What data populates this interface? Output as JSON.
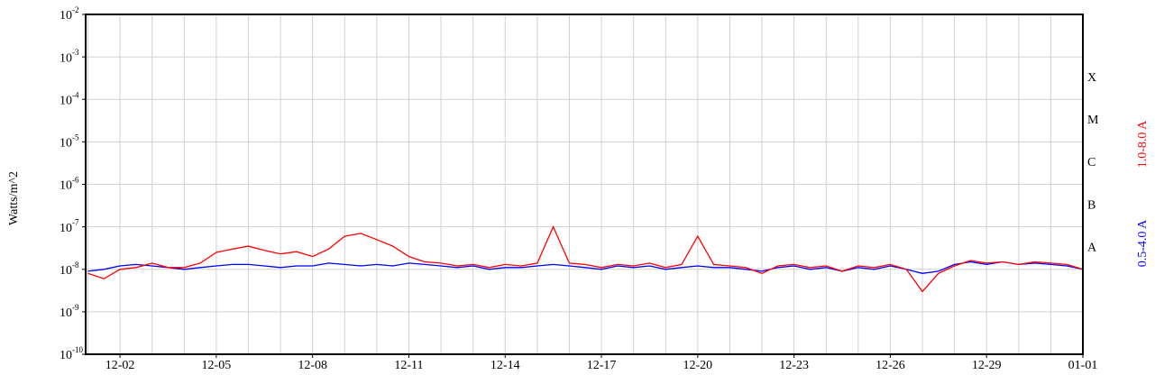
{
  "chart_data": {
    "type": "line",
    "y_label": "Watts/m^2",
    "log_y": true,
    "grid": true,
    "xlim": [
      0.93,
      32
    ],
    "ylim": [
      1e-10,
      0.01
    ],
    "xticks": [
      {
        "value": 2,
        "label": "12-02"
      },
      {
        "value": 5,
        "label": "12-05"
      },
      {
        "value": 8,
        "label": "12-08"
      },
      {
        "value": 11,
        "label": "12-11"
      },
      {
        "value": 14,
        "label": "12-14"
      },
      {
        "value": 17,
        "label": "12-17"
      },
      {
        "value": 20,
        "label": "12-20"
      },
      {
        "value": 23,
        "label": "12-23"
      },
      {
        "value": 26,
        "label": "12-26"
      },
      {
        "value": 29,
        "label": "12-29"
      },
      {
        "value": 32,
        "label": "01-01"
      }
    ],
    "yticks": [
      {
        "value": 1e-10,
        "label": "10",
        "exp": "-10"
      },
      {
        "value": 1e-09,
        "label": "10",
        "exp": "-9"
      },
      {
        "value": 1e-08,
        "label": "10",
        "exp": "-8"
      },
      {
        "value": 1e-07,
        "label": "10",
        "exp": "-7"
      },
      {
        "value": 1e-06,
        "label": "10",
        "exp": "-6"
      },
      {
        "value": 1e-05,
        "label": "10",
        "exp": "-5"
      },
      {
        "value": 0.0001,
        "label": "10",
        "exp": "-4"
      },
      {
        "value": 0.001,
        "label": "10",
        "exp": "-3"
      },
      {
        "value": 0.01,
        "label": "10",
        "exp": "-2"
      }
    ],
    "flare_classes": [
      {
        "label": "A",
        "value": 1e-08
      },
      {
        "label": "B",
        "value": 1e-07
      },
      {
        "label": "C",
        "value": 1e-06
      },
      {
        "label": "M",
        "value": 1e-05
      },
      {
        "label": "X",
        "value": 0.0001
      }
    ],
    "x": [
      1,
      1.5,
      2,
      2.5,
      3,
      3.5,
      4,
      4.5,
      5,
      5.5,
      6,
      6.5,
      7,
      7.5,
      8,
      8.5,
      9,
      9.5,
      10,
      10.5,
      11,
      11.5,
      12,
      12.5,
      13,
      13.5,
      14,
      14.5,
      15,
      15.5,
      16,
      16.5,
      17,
      17.5,
      18,
      18.5,
      19,
      19.5,
      20,
      20.5,
      21,
      21.5,
      22,
      22.5,
      23,
      23.5,
      24,
      24.5,
      25,
      25.5,
      26,
      26.5,
      27,
      27.5,
      28,
      28.5,
      29,
      29.5,
      30,
      30.5,
      31,
      31.5,
      32
    ],
    "series": [
      {
        "name": "0.5-4.0 A",
        "color": "#0000ff",
        "values": [
          9e-09,
          1e-08,
          1.2e-08,
          1.3e-08,
          1.2e-08,
          1.1e-08,
          1e-08,
          1.1e-08,
          1.2e-08,
          1.3e-08,
          1.3e-08,
          1.2e-08,
          1.1e-08,
          1.2e-08,
          1.2e-08,
          1.4e-08,
          1.3e-08,
          1.2e-08,
          1.3e-08,
          1.2e-08,
          1.4e-08,
          1.3e-08,
          1.2e-08,
          1.1e-08,
          1.2e-08,
          1e-08,
          1.1e-08,
          1.1e-08,
          1.2e-08,
          1.3e-08,
          1.2e-08,
          1.1e-08,
          1e-08,
          1.2e-08,
          1.1e-08,
          1.2e-08,
          1e-08,
          1.1e-08,
          1.2e-08,
          1.1e-08,
          1.1e-08,
          1e-08,
          9e-09,
          1.1e-08,
          1.2e-08,
          1e-08,
          1.1e-08,
          9e-09,
          1.1e-08,
          1e-08,
          1.2e-08,
          1e-08,
          8e-09,
          9e-09,
          1.3e-08,
          1.5e-08,
          1.3e-08,
          1.5e-08,
          1.3e-08,
          1.4e-08,
          1.3e-08,
          1.2e-08,
          1e-08
        ]
      },
      {
        "name": "1.0-8.0 A",
        "color": "#ff0000",
        "values": [
          8e-09,
          6e-09,
          1e-08,
          1.1e-08,
          1.4e-08,
          1.1e-08,
          1.1e-08,
          1.4e-08,
          2.5e-08,
          3e-08,
          3.5e-08,
          2.8e-08,
          2.3e-08,
          2.6e-08,
          2e-08,
          3e-08,
          6e-08,
          7e-08,
          5e-08,
          3.5e-08,
          2e-08,
          1.5e-08,
          1.4e-08,
          1.2e-08,
          1.3e-08,
          1.1e-08,
          1.3e-08,
          1.2e-08,
          1.4e-08,
          1e-07,
          1.4e-08,
          1.3e-08,
          1.1e-08,
          1.3e-08,
          1.2e-08,
          1.4e-08,
          1.1e-08,
          1.3e-08,
          6e-08,
          1.3e-08,
          1.2e-08,
          1.1e-08,
          8e-09,
          1.2e-08,
          1.3e-08,
          1.1e-08,
          1.2e-08,
          9e-09,
          1.2e-08,
          1.1e-08,
          1.3e-08,
          1e-08,
          3e-09,
          8e-09,
          1.2e-08,
          1.6e-08,
          1.4e-08,
          1.5e-08,
          1.3e-08,
          1.5e-08,
          1.4e-08,
          1.3e-08,
          1e-08
        ]
      }
    ]
  }
}
